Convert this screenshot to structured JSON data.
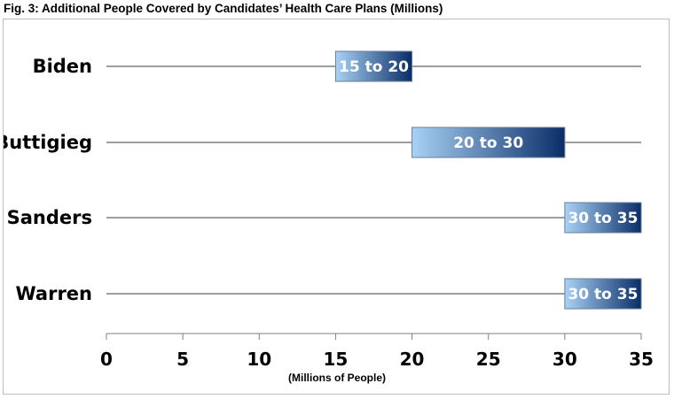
{
  "figure": {
    "title": "Fig. 3: Additional People Covered by Candidates’ Health Care Plans (Millions)"
  },
  "chart_data": {
    "type": "bar",
    "orientation": "horizontal",
    "title": "Fig. 3: Additional People Covered by Candidates’ Health Care Plans (Millions)",
    "xlabel": "(Millions of People)",
    "ylabel": "",
    "xlim": [
      0,
      35
    ],
    "xticks": [
      0,
      5,
      10,
      15,
      20,
      25,
      30,
      35
    ],
    "grid": false,
    "categories": [
      "Biden",
      "Buttigieg",
      "Sanders",
      "Warren"
    ],
    "ranges": [
      {
        "category": "Biden",
        "low": 15,
        "high": 20,
        "label": "15 to 20"
      },
      {
        "category": "Buttigieg",
        "low": 20,
        "high": 30,
        "label": "20 to 30"
      },
      {
        "category": "Sanders",
        "low": 30,
        "high": 35,
        "label": "30 to 35"
      },
      {
        "category": "Warren",
        "low": 30,
        "high": 35,
        "label": "30 to 35"
      }
    ],
    "colors": {
      "bar_light": "#a9d2f5",
      "bar_dark": "#0a2d68",
      "bar_border": "#6a7f99",
      "track_line": "#7f7f7f",
      "axis": "#7f7f7f"
    }
  }
}
